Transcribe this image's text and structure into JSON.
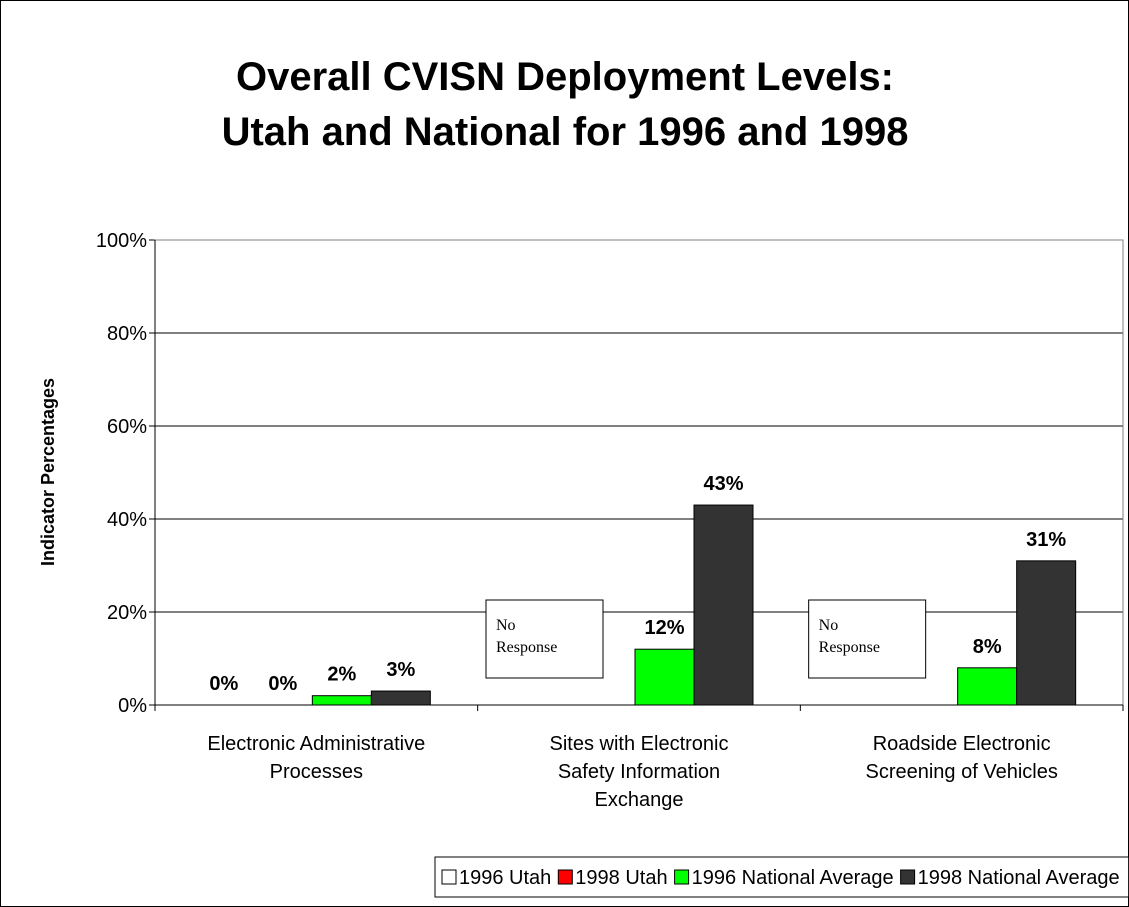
{
  "chart_data": {
    "type": "bar",
    "title": "Overall CVISN Deployment Levels:\nUtah and National for 1996 and 1998",
    "y_label": "Indicator Percentages",
    "categories": [
      "Electronic Administrative\nProcesses",
      "Sites with Electronic\nSafety Information\nExchange",
      "Roadside Electronic\nScreening of Vehicles"
    ],
    "series": [
      {
        "name": "1996 Utah",
        "color": "#ffffff",
        "values": [
          0,
          null,
          null
        ],
        "value_labels": [
          "0%",
          null,
          null
        ]
      },
      {
        "name": "1998 Utah",
        "color": "#ff0000",
        "values": [
          0,
          null,
          null
        ],
        "value_labels": [
          "0%",
          null,
          null
        ]
      },
      {
        "name": "1996 National Average",
        "color": "#00ff00",
        "values": [
          2,
          12,
          8
        ],
        "value_labels": [
          "2%",
          "12%",
          "8%"
        ]
      },
      {
        "name": "1998 National Average",
        "color": "#333333",
        "values": [
          3,
          43,
          31
        ],
        "value_labels": [
          "3%",
          "43%",
          "31%"
        ]
      }
    ],
    "annotations": [
      "No\nResponse",
      "No\nResponse"
    ],
    "ylim": [
      0,
      100
    ],
    "yticks": [
      {
        "value": 0,
        "label": "0%"
      },
      {
        "value": 20,
        "label": "20%"
      },
      {
        "value": 40,
        "label": "40%"
      },
      {
        "value": 60,
        "label": "60%"
      },
      {
        "value": 80,
        "label": "80%"
      },
      {
        "value": 100,
        "label": "100%"
      }
    ],
    "grid": true,
    "legend": "bottom"
  }
}
